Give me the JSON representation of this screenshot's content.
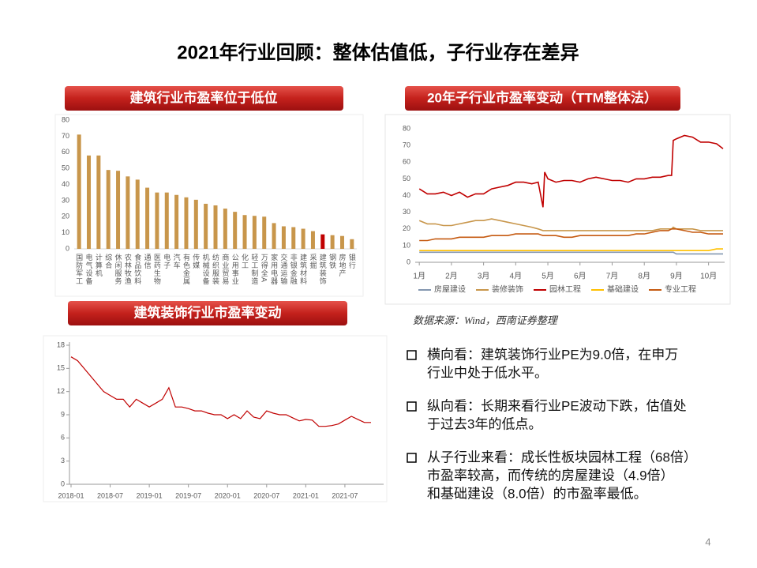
{
  "title": "2021年行业回顾：整体估值低，子行业存在差异",
  "chart_data": [
    {
      "type": "bar",
      "title": "建筑行业市盈率位于低位",
      "categories": [
        "国防军工",
        "电气设备",
        "计算机",
        "综合",
        "休闲服务",
        "农林牧渔",
        "食品饮料",
        "通信",
        "医药生物",
        "电子",
        "汽车",
        "有色金属",
        "传媒",
        "机械设备",
        "纺织服装",
        "商业贸易",
        "公用事业",
        "化工",
        "轻工制造",
        "万得全A",
        "家用电器",
        "交通运输",
        "非银金融",
        "建筑材料",
        "采掘",
        "建筑装饰",
        "钢铁",
        "房地产",
        "银行"
      ],
      "values": [
        71,
        58,
        58,
        49,
        48.5,
        45,
        43,
        38,
        35,
        35,
        33.5,
        32,
        30.5,
        28,
        27,
        25,
        23,
        21,
        20.5,
        20,
        16,
        14,
        13.5,
        12.5,
        11,
        9,
        8.5,
        8,
        6
      ],
      "colors": [
        "#c8964b",
        "#c8964b",
        "#c8964b",
        "#c8964b",
        "#c8964b",
        "#c8964b",
        "#c8964b",
        "#c8964b",
        "#c8964b",
        "#c8964b",
        "#c8964b",
        "#c8964b",
        "#c8964b",
        "#c8964b",
        "#c8964b",
        "#c8964b",
        "#c8964b",
        "#c8964b",
        "#c8964b",
        "#c8964b",
        "#c8964b",
        "#c8964b",
        "#c8964b",
        "#c8964b",
        "#c8964b",
        "#c00000",
        "#c8964b",
        "#c8964b",
        "#c8964b"
      ],
      "ylim": [
        0,
        80
      ],
      "yticks": [
        0,
        10,
        20,
        30,
        40,
        50,
        60,
        70,
        80
      ]
    },
    {
      "type": "line",
      "title": "20年子行业市盈率变动（TTM整体法）",
      "x": [
        1,
        1.25,
        1.5,
        1.75,
        2,
        2.25,
        2.5,
        2.75,
        3,
        3.25,
        3.5,
        3.75,
        4,
        4.25,
        4.5,
        4.7,
        4.85,
        4.9,
        5,
        5.25,
        5.5,
        5.75,
        6,
        6.25,
        6.5,
        6.75,
        7,
        7.25,
        7.5,
        7.75,
        8,
        8.25,
        8.5,
        8.75,
        8.85,
        8.9,
        9,
        9.25,
        9.5,
        9.75,
        10,
        10.25,
        10.45
      ],
      "xlim": [
        0.75,
        10.5
      ],
      "xticks": [
        {
          "value": 1,
          "label": "1月"
        },
        {
          "value": 2,
          "label": "2月"
        },
        {
          "value": 3,
          "label": "3月"
        },
        {
          "value": 4,
          "label": "4月"
        },
        {
          "value": 5,
          "label": "5月"
        },
        {
          "value": 6,
          "label": "6月"
        },
        {
          "value": 7,
          "label": "7月"
        },
        {
          "value": 8,
          "label": "8月"
        },
        {
          "value": 9,
          "label": "9月"
        },
        {
          "value": 10,
          "label": "10月"
        }
      ],
      "ylim": [
        0,
        80
      ],
      "yticks": [
        0,
        10,
        20,
        30,
        40,
        50,
        60,
        70,
        80
      ],
      "legend": "bottom",
      "series": [
        {
          "name": "房屋建设",
          "color": "#8497b0",
          "values": [
            6,
            6,
            6,
            6,
            6,
            6,
            6,
            6,
            6,
            6,
            6,
            6,
            6,
            6,
            6,
            6,
            6,
            6,
            6,
            6,
            6,
            6,
            6,
            6,
            6,
            6,
            6,
            6,
            6,
            6,
            6,
            6,
            6,
            6,
            6,
            6,
            5,
            5,
            5,
            5,
            5,
            5,
            5
          ]
        },
        {
          "name": "装修装饰",
          "color": "#c8964b",
          "values": [
            25,
            23,
            23,
            22,
            22,
            23,
            24,
            25,
            25,
            26,
            25,
            24,
            23,
            22,
            21,
            20,
            19,
            19,
            19,
            19,
            19,
            19,
            19,
            19,
            19,
            19,
            19,
            19,
            19,
            19,
            19,
            19,
            20,
            20,
            20,
            21,
            20,
            20,
            20,
            19,
            19,
            19,
            19
          ]
        },
        {
          "name": "园林工程",
          "color": "#c00000",
          "values": [
            44,
            41,
            41,
            42,
            40,
            42,
            39,
            41,
            41,
            44,
            45,
            46,
            48,
            48,
            47,
            48,
            33,
            54,
            50,
            48,
            49,
            49,
            48,
            50,
            51,
            50,
            49,
            49,
            48,
            50,
            50,
            51,
            51,
            52,
            52,
            73,
            74,
            76,
            75,
            72,
            72,
            71,
            68
          ]
        },
        {
          "name": "基础建设",
          "color": "#ffc000",
          "values": [
            7,
            7,
            7,
            7,
            7,
            7,
            7,
            7,
            7,
            7,
            7,
            7,
            7,
            7,
            7,
            7,
            7,
            7,
            7,
            7,
            7,
            7,
            7,
            7,
            7,
            7,
            7,
            7,
            7,
            7,
            7,
            7,
            7,
            7,
            7,
            7,
            7,
            7,
            7,
            7,
            7,
            8,
            8
          ]
        },
        {
          "name": "专业工程",
          "color": "#c55a11",
          "values": [
            13,
            13,
            14,
            14,
            14,
            15,
            15,
            15,
            15,
            16,
            16,
            16,
            17,
            17,
            17,
            17,
            16,
            16,
            16,
            16,
            15,
            15,
            16,
            16,
            16,
            16,
            16,
            16,
            16,
            17,
            17,
            18,
            19,
            19,
            20,
            20,
            20,
            19,
            18,
            18,
            17,
            17,
            17
          ]
        }
      ]
    },
    {
      "type": "line",
      "title": "建筑装饰行业市盈率变动",
      "x": [
        "2018-01",
        "2018-02",
        "2018-03",
        "2018-04",
        "2018-05",
        "2018-06",
        "2018-07",
        "2018-08",
        "2018-09",
        "2018-10",
        "2018-11",
        "2018-12",
        "2019-01",
        "2019-02",
        "2019-03",
        "2019-04",
        "2019-05",
        "2019-06",
        "2019-07",
        "2019-08",
        "2019-09",
        "2019-10",
        "2019-11",
        "2019-12",
        "2020-01",
        "2020-02",
        "2020-03",
        "2020-04",
        "2020-05",
        "2020-06",
        "2020-07",
        "2020-08",
        "2020-09",
        "2020-10",
        "2020-11",
        "2020-12",
        "2021-01",
        "2021-02",
        "2021-03",
        "2021-04",
        "2021-05",
        "2021-06",
        "2021-07",
        "2021-08",
        "2021-09",
        "2021-10",
        "2021-11"
      ],
      "values": [
        16.5,
        16,
        15,
        14,
        13,
        12,
        11.5,
        11,
        11,
        10,
        11,
        10.5,
        10,
        10.5,
        11,
        12.5,
        10,
        10,
        9.8,
        9.5,
        9.5,
        9.2,
        9,
        9,
        8.5,
        9,
        8.5,
        9.5,
        8.7,
        8.5,
        9.5,
        9.2,
        9,
        9,
        8.6,
        8.2,
        8.4,
        8.3,
        7.5,
        7.5,
        7.6,
        7.8,
        8.3,
        8.8,
        8.4,
        8,
        8
      ],
      "color": "#c00000",
      "xticks": [
        "2018-01",
        "2018-07",
        "2019-01",
        "2019-07",
        "2020-01",
        "2020-07",
        "2021-01",
        "2021-07"
      ],
      "ylim": [
        0,
        18
      ],
      "yticks": [
        0,
        3,
        6,
        9,
        12,
        15,
        18
      ]
    }
  ],
  "source": "数据来源：Wind，西南证券整理",
  "bullets": [
    [
      "横向看：建筑装饰行业PE为9.0倍，在申万",
      "行业中处于低水平。"
    ],
    [
      "纵向看：长期来看行业PE波动下跌，估值处",
      "于过去3年的低点。"
    ],
    [
      "从子行业来看：成长性板块园林工程（68倍）",
      "市盈率较高，而传统的房屋建设（4.9倍）",
      "和基础建设（8.0倍）的市盈率最低。"
    ]
  ],
  "page_number": "4"
}
